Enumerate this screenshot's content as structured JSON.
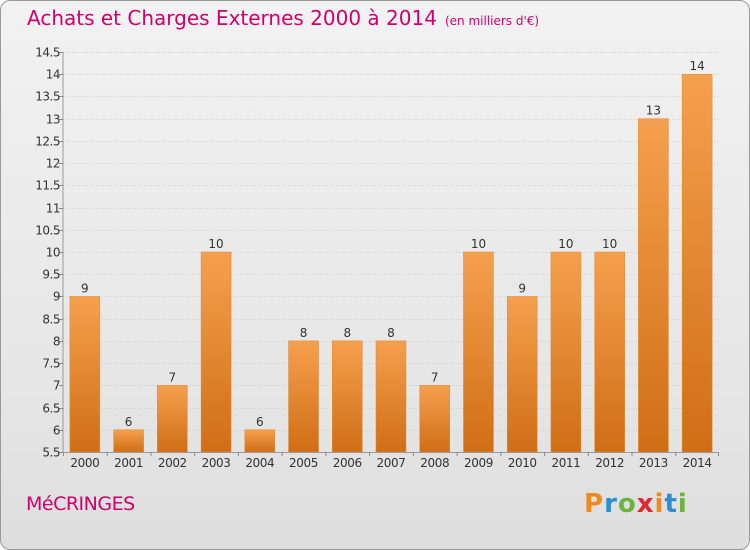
{
  "title": "Achats et Charges Externes 2000 à 2014",
  "subtitle": "(en milliers d'€)",
  "commune": "MéCRINGES",
  "brand": {
    "text": "Proxiti",
    "letters": [
      {
        "ch": "P",
        "color": "#f08a1e"
      },
      {
        "ch": "r",
        "color": "#2a8fd0"
      },
      {
        "ch": "o",
        "color": "#6cb43f"
      },
      {
        "ch": "x",
        "color": "#e3262f"
      },
      {
        "ch": "i",
        "color": "#f08a1e"
      },
      {
        "ch": "t",
        "color": "#2a8fd0"
      },
      {
        "ch": "i",
        "color": "#6cb43f"
      }
    ]
  },
  "colors": {
    "accent": "#d1006c",
    "bar_top": "#f5a04e",
    "bar_bottom": "#d06e16"
  },
  "chart_data": {
    "type": "bar",
    "title": "Achats et Charges Externes 2000 à 2014",
    "subtitle": "(en milliers d'€)",
    "xlabel": "",
    "ylabel": "",
    "categories": [
      "2000",
      "2001",
      "2002",
      "2003",
      "2004",
      "2005",
      "2006",
      "2007",
      "2008",
      "2009",
      "2010",
      "2011",
      "2012",
      "2013",
      "2014"
    ],
    "values": [
      9,
      6,
      7,
      10,
      6,
      8,
      8,
      8,
      7,
      10,
      9,
      10,
      10,
      13,
      14
    ],
    "value_labels": [
      "9",
      "6",
      "7",
      "10",
      "6",
      "8",
      "8",
      "8",
      "7",
      "10",
      "9",
      "10",
      "10",
      "13",
      "14"
    ],
    "ylim": [
      5.5,
      14.5
    ],
    "yticks": [
      5.5,
      6,
      6.5,
      7,
      7.5,
      8,
      8.5,
      9,
      9.5,
      10,
      10.5,
      11,
      11.5,
      12,
      12.5,
      13,
      13.5,
      14,
      14.5
    ],
    "ytick_labels": [
      "5.5",
      "6",
      "6.5",
      "7",
      "7.5",
      "8",
      "8.5",
      "9",
      "9.5",
      "10",
      "10.5",
      "11",
      "11.5",
      "12",
      "12.5",
      "13",
      "13.5",
      "14",
      "14.5"
    ],
    "grid": true,
    "legend": "none"
  }
}
